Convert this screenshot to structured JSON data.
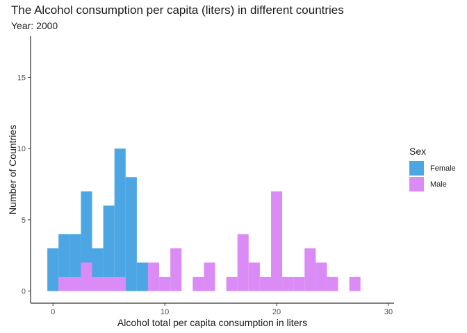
{
  "chart_data": {
    "type": "histogram",
    "title": "The Alcohol consumption per capita (liters) in different countries",
    "subtitle": "Year: 2000",
    "xlabel": "Alcohol total per capita consumption in liters",
    "ylabel": "Number of Countries",
    "xlim": [
      -2,
      30.5
    ],
    "ylim": [
      -0.85,
      17.9
    ],
    "x_ticks": [
      0,
      10,
      20,
      30
    ],
    "y_ticks": [
      0,
      5,
      10,
      15
    ],
    "bin_width": 1,
    "grid": false,
    "legend_title": "Sex",
    "legend_position": "right",
    "series": [
      {
        "name": "Female",
        "color": "#4BA6E3",
        "bins": [
          {
            "start": -0.5,
            "end": 0.5,
            "count": 3
          },
          {
            "start": 0.5,
            "end": 1.5,
            "count": 4
          },
          {
            "start": 1.5,
            "end": 2.5,
            "count": 4
          },
          {
            "start": 2.5,
            "end": 3.5,
            "count": 7
          },
          {
            "start": 3.5,
            "end": 4.5,
            "count": 3
          },
          {
            "start": 4.5,
            "end": 5.5,
            "count": 6
          },
          {
            "start": 5.5,
            "end": 6.5,
            "count": 10
          },
          {
            "start": 6.5,
            "end": 7.5,
            "count": 8
          },
          {
            "start": 7.5,
            "end": 8.5,
            "count": 2
          }
        ]
      },
      {
        "name": "Male",
        "color": "#DB8BF5",
        "bins": [
          {
            "start": 0.5,
            "end": 1.5,
            "count": 1
          },
          {
            "start": 1.5,
            "end": 2.5,
            "count": 1
          },
          {
            "start": 2.5,
            "end": 3.5,
            "count": 2
          },
          {
            "start": 3.5,
            "end": 4.5,
            "count": 1
          },
          {
            "start": 4.5,
            "end": 5.5,
            "count": 1
          },
          {
            "start": 5.5,
            "end": 6.5,
            "count": 1
          },
          {
            "start": 8.5,
            "end": 9.5,
            "count": 2
          },
          {
            "start": 9.5,
            "end": 10.5,
            "count": 1
          },
          {
            "start": 10.5,
            "end": 11.5,
            "count": 3
          },
          {
            "start": 12.5,
            "end": 13.5,
            "count": 1
          },
          {
            "start": 13.5,
            "end": 14.5,
            "count": 2
          },
          {
            "start": 15.5,
            "end": 16.5,
            "count": 1
          },
          {
            "start": 16.5,
            "end": 17.5,
            "count": 4
          },
          {
            "start": 17.5,
            "end": 18.5,
            "count": 2
          },
          {
            "start": 18.5,
            "end": 19.5,
            "count": 1
          },
          {
            "start": 19.5,
            "end": 20.5,
            "count": 7
          },
          {
            "start": 20.5,
            "end": 21.5,
            "count": 1
          },
          {
            "start": 21.5,
            "end": 22.5,
            "count": 1
          },
          {
            "start": 22.5,
            "end": 23.5,
            "count": 3
          },
          {
            "start": 23.5,
            "end": 24.5,
            "count": 2
          },
          {
            "start": 24.5,
            "end": 25.5,
            "count": 1
          },
          {
            "start": 26.5,
            "end": 27.5,
            "count": 1
          }
        ]
      }
    ]
  }
}
